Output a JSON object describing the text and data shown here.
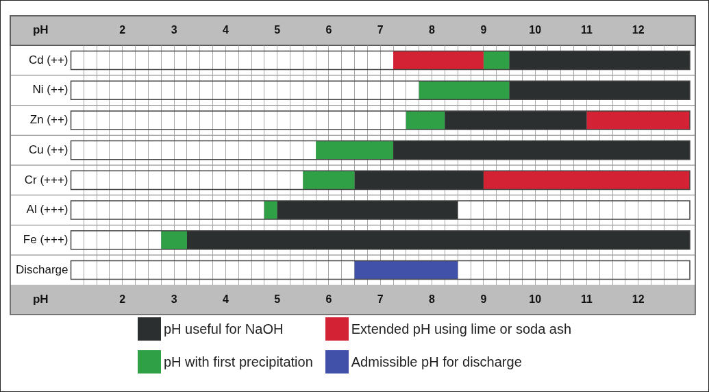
{
  "chart_data": {
    "type": "bar",
    "orientation": "horizontal",
    "xlabel": "pH",
    "x2label": "pH",
    "categories": [
      "Cd (++)",
      "Ni (++)",
      "Zn (++)",
      "Cu (++)",
      "Cr (+++)",
      "Al (+++)",
      "Fe (+++)",
      "Discharge"
    ],
    "series": [
      {
        "name": "pH useful for NaOH",
        "color": "#2b2f2f",
        "base": [
          9.5,
          9.5,
          8.25,
          7.25,
          6.5,
          5.0,
          3.25,
          null
        ],
        "values": [
          3.5,
          3.5,
          2.75,
          5.75,
          2.5,
          3.5,
          9.75,
          null
        ]
      },
      {
        "name": "Extended pH using lime or soda ash",
        "color": "#d42235",
        "base": [
          7.25,
          null,
          11.0,
          null,
          9.0,
          null,
          null,
          null
        ],
        "values": [
          1.75,
          null,
          2.0,
          null,
          4.0,
          null,
          null,
          null
        ]
      },
      {
        "name": "pH with first precipitation",
        "color": "#2fa046",
        "base": [
          9.0,
          7.75,
          7.5,
          5.75,
          5.5,
          4.75,
          2.75,
          null
        ],
        "values": [
          0.5,
          1.75,
          0.75,
          1.5,
          1.0,
          0.25,
          0.5,
          null
        ]
      },
      {
        "name": "Admissible pH for discharge",
        "color": "#4150a8",
        "base": [
          null,
          null,
          null,
          null,
          null,
          null,
          null,
          6.5
        ],
        "values": [
          null,
          null,
          null,
          null,
          null,
          null,
          null,
          2.0
        ]
      }
    ],
    "xlim": [
      1,
      13
    ],
    "xticks": [
      {
        "value": 1.25,
        "label": null
      },
      {
        "value": 1.5,
        "label": null
      },
      {
        "value": 1.75,
        "label": null
      },
      2,
      {
        "value": 2.25,
        "label": null
      },
      {
        "value": 2.5,
        "label": null
      },
      {
        "value": 2.75,
        "label": null
      },
      3,
      {
        "value": 3.25,
        "label": null
      },
      {
        "value": 3.5,
        "label": null
      },
      {
        "value": 3.75,
        "label": null
      },
      4,
      {
        "value": 4.25,
        "label": null
      },
      {
        "value": 4.5,
        "label": null
      },
      {
        "value": 4.75,
        "label": null
      },
      5,
      {
        "value": 5.25,
        "label": null
      },
      {
        "value": 5.5,
        "label": null
      },
      {
        "value": 5.75,
        "label": null
      },
      6,
      {
        "value": 6.25,
        "label": null
      },
      {
        "value": 6.5,
        "label": null
      },
      {
        "value": 6.75,
        "label": null
      },
      7,
      {
        "value": 7.25,
        "label": null
      },
      {
        "value": 7.5,
        "label": null
      },
      {
        "value": 7.75,
        "label": null
      },
      8,
      {
        "value": 8.25,
        "label": null
      },
      {
        "value": 8.5,
        "label": null
      },
      {
        "value": 8.75,
        "label": null
      },
      9,
      {
        "value": 9.25,
        "label": null
      },
      {
        "value": 9.5,
        "label": null
      },
      {
        "value": 9.75,
        "label": null
      },
      10,
      {
        "value": 10.25,
        "label": null
      },
      {
        "value": 10.5,
        "label": null
      },
      {
        "value": 10.75,
        "label": null
      },
      11,
      {
        "value": 11.25,
        "label": null
      },
      {
        "value": 11.5,
        "label": null
      },
      {
        "value": 11.75,
        "label": null
      },
      12,
      {
        "value": 12.25,
        "label": null
      },
      {
        "value": 12.5,
        "label": null
      },
      {
        "value": 12.75,
        "label": null
      }
    ],
    "x2lim": [
      1,
      13
    ],
    "x2ticks": [
      {
        "value": 1.25,
        "label": null
      },
      {
        "value": 1.5,
        "label": null
      },
      {
        "value": 1.75,
        "label": null
      },
      2,
      {
        "value": 2.25,
        "label": null
      },
      {
        "value": 2.5,
        "label": null
      },
      {
        "value": 2.75,
        "label": null
      },
      3,
      {
        "value": 3.25,
        "label": null
      },
      {
        "value": 3.5,
        "label": null
      },
      {
        "value": 3.75,
        "label": null
      },
      4,
      {
        "value": 4.25,
        "label": null
      },
      {
        "value": 4.5,
        "label": null
      },
      {
        "value": 4.75,
        "label": null
      },
      5,
      {
        "value": 5.25,
        "label": null
      },
      {
        "value": 5.5,
        "label": null
      },
      {
        "value": 5.75,
        "label": null
      },
      6,
      {
        "value": 6.25,
        "label": null
      },
      {
        "value": 6.5,
        "label": null
      },
      {
        "value": 6.75,
        "label": null
      },
      7,
      {
        "value": 7.25,
        "label": null
      },
      {
        "value": 7.5,
        "label": null
      },
      {
        "value": 7.75,
        "label": null
      },
      8,
      {
        "value": 8.25,
        "label": null
      },
      {
        "value": 8.5,
        "label": null
      },
      {
        "value": 8.75,
        "label": null
      },
      9,
      {
        "value": 9.25,
        "label": null
      },
      {
        "value": 9.5,
        "label": null
      },
      {
        "value": 9.75,
        "label": null
      },
      10,
      {
        "value": 10.25,
        "label": null
      },
      {
        "value": 10.5,
        "label": null
      },
      {
        "value": 10.75,
        "label": null
      },
      11,
      {
        "value": 11.25,
        "label": null
      },
      {
        "value": 11.5,
        "label": null
      },
      {
        "value": 11.75,
        "label": null
      },
      12,
      {
        "value": 12.25,
        "label": null
      },
      {
        "value": 12.5,
        "label": null
      },
      {
        "value": 12.75,
        "label": null
      }
    ],
    "grid": "x",
    "legend": "bottom"
  }
}
